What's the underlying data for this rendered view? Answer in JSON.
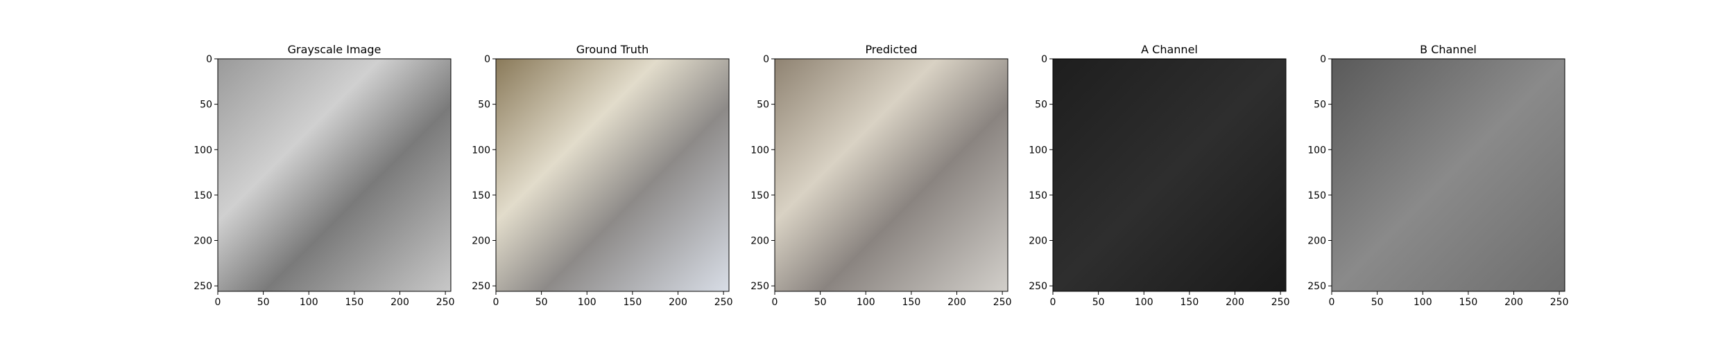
{
  "chart_data": [
    {
      "type": "image",
      "title": "Grayscale Image",
      "colormap": "grayscale",
      "xlim": [
        0,
        256
      ],
      "ylim": [
        256,
        0
      ],
      "xticks": [
        0,
        50,
        100,
        150,
        200,
        250
      ],
      "yticks": [
        0,
        50,
        100,
        150,
        200,
        250
      ]
    },
    {
      "type": "image",
      "title": "Ground Truth",
      "colormap": "color",
      "xlim": [
        0,
        256
      ],
      "ylim": [
        256,
        0
      ],
      "xticks": [
        0,
        50,
        100,
        150,
        200,
        250
      ],
      "yticks": [
        0,
        50,
        100,
        150,
        200,
        250
      ]
    },
    {
      "type": "image",
      "title": "Predicted",
      "colormap": "color-desaturated",
      "xlim": [
        0,
        256
      ],
      "ylim": [
        256,
        0
      ],
      "xticks": [
        0,
        50,
        100,
        150,
        200,
        250
      ],
      "yticks": [
        0,
        50,
        100,
        150,
        200,
        250
      ]
    },
    {
      "type": "image",
      "title": "A Channel",
      "colormap": "grayscale-dark",
      "xlim": [
        0,
        256
      ],
      "ylim": [
        256,
        0
      ],
      "xticks": [
        0,
        50,
        100,
        150,
        200,
        250
      ],
      "yticks": [
        0,
        50,
        100,
        150,
        200,
        250
      ]
    },
    {
      "type": "image",
      "title": "B Channel",
      "colormap": "grayscale-mid",
      "xlim": [
        0,
        256
      ],
      "ylim": [
        256,
        0
      ],
      "xticks": [
        0,
        50,
        100,
        150,
        200,
        250
      ],
      "yticks": [
        0,
        50,
        100,
        150,
        200,
        250
      ]
    }
  ]
}
